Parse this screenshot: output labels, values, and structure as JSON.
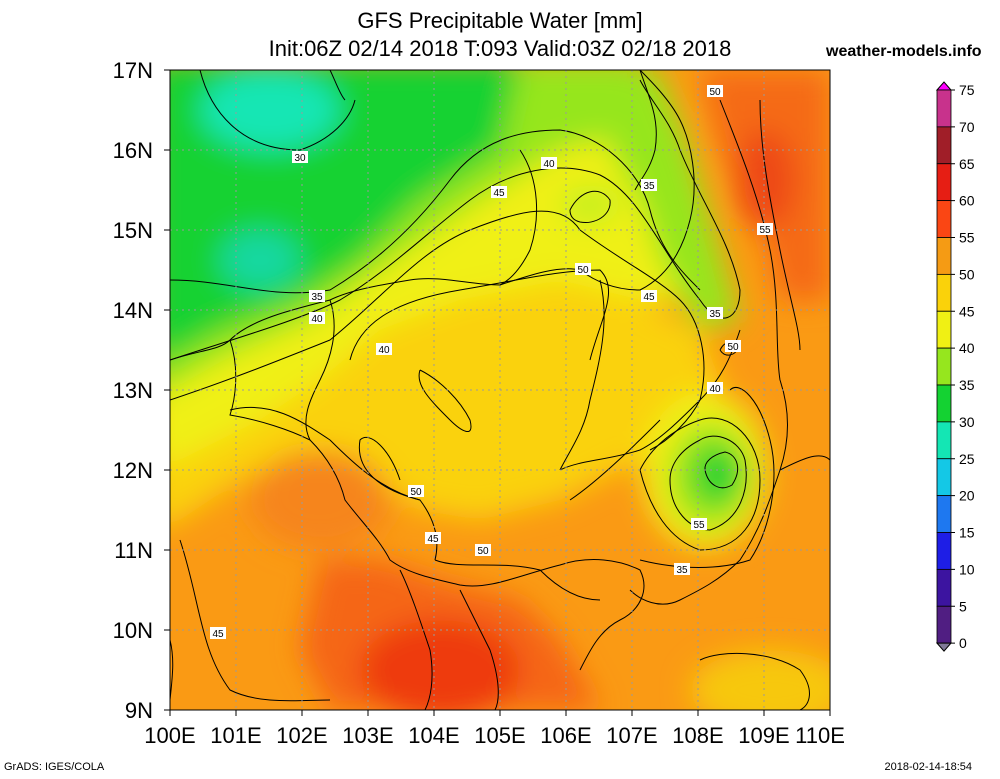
{
  "title_line1": "GFS Precipitable Water [mm]",
  "title_line2": "Init:06Z 02/14 2018 T:093 Valid:03Z 02/18 2018",
  "site": "weather-models.info",
  "footer_left": "GrADS: IGES/COLA",
  "footer_right": "2018-02-14-18:54",
  "lat_labels": [
    "17N",
    "16N",
    "15N",
    "14N",
    "13N",
    "12N",
    "11N",
    "10N",
    "9N"
  ],
  "lon_labels": [
    "100E",
    "101E",
    "102E",
    "103E",
    "104E",
    "105E",
    "106E",
    "107E",
    "108E",
    "109E",
    "110E"
  ],
  "colorbar": {
    "labels": [
      "75",
      "70",
      "65",
      "60",
      "55",
      "50",
      "45",
      "40",
      "35",
      "30",
      "25",
      "20",
      "15",
      "10",
      "5",
      "0"
    ],
    "colors": [
      "#ff00ff",
      "#c8328c",
      "#a01e28",
      "#e61e14",
      "#fa4614",
      "#f59b14",
      "#fad20a",
      "#f0f014",
      "#96e61e",
      "#14d232",
      "#14e6b4",
      "#14c8e6",
      "#1e78f0",
      "#1e1ee6",
      "#3c14a0",
      "#501e82",
      "#807896"
    ]
  },
  "contour_labels": [
    "30",
    "35",
    "40",
    "40",
    "45",
    "35",
    "50",
    "50",
    "45",
    "55",
    "35",
    "40",
    "40",
    "50",
    "45",
    "50",
    "55",
    "35",
    "45",
    "50"
  ]
}
